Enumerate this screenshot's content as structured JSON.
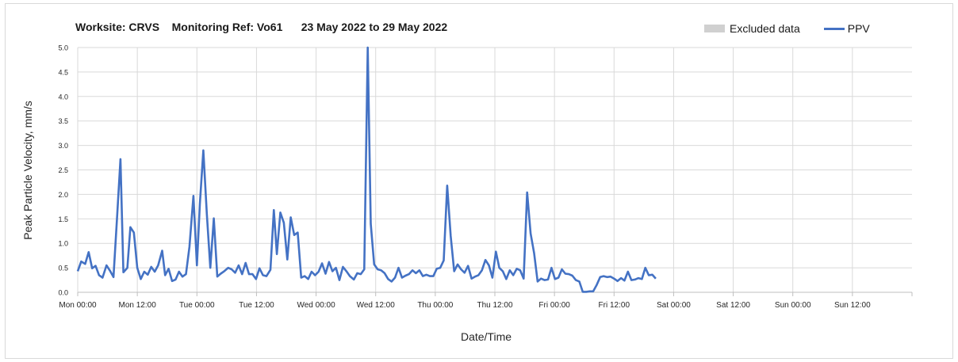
{
  "chart_data": {
    "type": "line",
    "title": "Worksite: CRVS    Monitoring Ref: Vo61      23 May 2022 to 29 May 2022",
    "xlabel": "Date/Time",
    "ylabel": "Peak Particle Velocity, mm/s",
    "ylim": [
      0,
      5
    ],
    "xlim": [
      0,
      168
    ],
    "grid": true,
    "legend_position": "top-right",
    "legend": [
      "Excluded data",
      "PPV"
    ],
    "x_ticks": [
      {
        "x": 0,
        "label": "Mon 00:00"
      },
      {
        "x": 12,
        "label": "Mon 12:00"
      },
      {
        "x": 24,
        "label": "Tue 00:00"
      },
      {
        "x": 36,
        "label": "Tue 12:00"
      },
      {
        "x": 48,
        "label": "Wed 00:00"
      },
      {
        "x": 60,
        "label": "Wed 12:00"
      },
      {
        "x": 72,
        "label": "Thu 00:00"
      },
      {
        "x": 84,
        "label": "Thu 12:00"
      },
      {
        "x": 96,
        "label": "Fri 00:00"
      },
      {
        "x": 108,
        "label": "Fri 12:00"
      },
      {
        "x": 120,
        "label": "Sat 00:00"
      },
      {
        "x": 132,
        "label": "Sat 12:00"
      },
      {
        "x": 144,
        "label": "Sun 00:00"
      },
      {
        "x": 156,
        "label": "Sun 12:00"
      }
    ],
    "y_ticks": [
      "0.0",
      "0.5",
      "1.0",
      "1.5",
      "2.0",
      "2.5",
      "3.0",
      "3.5",
      "4.0",
      "4.5",
      "5.0"
    ],
    "series": [
      {
        "name": "PPV",
        "color": "#4472c4",
        "points": [
          [
            0,
            0.43
          ],
          [
            0.7,
            0.63
          ],
          [
            1.5,
            0.58
          ],
          [
            2.2,
            0.82
          ],
          [
            2.9,
            0.49
          ],
          [
            3.6,
            0.54
          ],
          [
            4.3,
            0.35
          ],
          [
            5.0,
            0.3
          ],
          [
            5.8,
            0.55
          ],
          [
            6.5,
            0.44
          ],
          [
            7.2,
            0.31
          ],
          [
            7.9,
            1.5
          ],
          [
            8.6,
            2.72
          ],
          [
            9.2,
            0.41
          ],
          [
            10.0,
            0.5
          ],
          [
            10.6,
            1.33
          ],
          [
            11.3,
            1.22
          ],
          [
            12.0,
            0.5
          ],
          [
            12.7,
            0.27
          ],
          [
            13.4,
            0.42
          ],
          [
            14.1,
            0.36
          ],
          [
            14.8,
            0.52
          ],
          [
            15.5,
            0.42
          ],
          [
            16.2,
            0.55
          ],
          [
            17.0,
            0.85
          ],
          [
            17.6,
            0.35
          ],
          [
            18.3,
            0.48
          ],
          [
            19.0,
            0.23
          ],
          [
            19.7,
            0.26
          ],
          [
            20.4,
            0.42
          ],
          [
            21.1,
            0.32
          ],
          [
            21.8,
            0.37
          ],
          [
            22.5,
            0.93
          ],
          [
            23.3,
            1.97
          ],
          [
            24.0,
            0.55
          ],
          [
            24.6,
            1.8
          ],
          [
            25.3,
            2.9
          ],
          [
            26.0,
            1.6
          ],
          [
            26.7,
            0.5
          ],
          [
            27.4,
            1.51
          ],
          [
            28.1,
            0.32
          ],
          [
            28.8,
            0.38
          ],
          [
            29.5,
            0.43
          ],
          [
            30.3,
            0.5
          ],
          [
            31.0,
            0.47
          ],
          [
            31.7,
            0.4
          ],
          [
            32.4,
            0.55
          ],
          [
            33.1,
            0.37
          ],
          [
            33.8,
            0.6
          ],
          [
            34.5,
            0.37
          ],
          [
            35.2,
            0.37
          ],
          [
            35.9,
            0.27
          ],
          [
            36.6,
            0.49
          ],
          [
            37.3,
            0.35
          ],
          [
            38.0,
            0.33
          ],
          [
            38.8,
            0.46
          ],
          [
            39.5,
            1.68
          ],
          [
            40.1,
            0.78
          ],
          [
            40.8,
            1.63
          ],
          [
            41.5,
            1.42
          ],
          [
            42.2,
            0.67
          ],
          [
            42.9,
            1.53
          ],
          [
            43.6,
            1.17
          ],
          [
            44.3,
            1.22
          ],
          [
            45.0,
            0.3
          ],
          [
            45.7,
            0.33
          ],
          [
            46.4,
            0.27
          ],
          [
            47.1,
            0.42
          ],
          [
            47.8,
            0.35
          ],
          [
            48.5,
            0.42
          ],
          [
            49.2,
            0.59
          ],
          [
            49.9,
            0.38
          ],
          [
            50.6,
            0.62
          ],
          [
            51.3,
            0.43
          ],
          [
            52.0,
            0.5
          ],
          [
            52.7,
            0.25
          ],
          [
            53.4,
            0.52
          ],
          [
            54.1,
            0.43
          ],
          [
            54.8,
            0.33
          ],
          [
            55.6,
            0.26
          ],
          [
            56.3,
            0.39
          ],
          [
            57.0,
            0.37
          ],
          [
            57.7,
            0.47
          ],
          [
            58.4,
            5.0
          ],
          [
            59.0,
            1.4
          ],
          [
            59.7,
            0.57
          ],
          [
            60.4,
            0.47
          ],
          [
            61.1,
            0.45
          ],
          [
            61.8,
            0.39
          ],
          [
            62.5,
            0.27
          ],
          [
            63.2,
            0.22
          ],
          [
            63.9,
            0.3
          ],
          [
            64.6,
            0.5
          ],
          [
            65.3,
            0.3
          ],
          [
            66.0,
            0.34
          ],
          [
            66.7,
            0.37
          ],
          [
            67.4,
            0.45
          ],
          [
            68.1,
            0.39
          ],
          [
            68.8,
            0.45
          ],
          [
            69.5,
            0.33
          ],
          [
            70.2,
            0.36
          ],
          [
            70.9,
            0.33
          ],
          [
            71.6,
            0.33
          ],
          [
            72.3,
            0.48
          ],
          [
            73.0,
            0.5
          ],
          [
            73.7,
            0.65
          ],
          [
            74.4,
            2.18
          ],
          [
            75.1,
            1.15
          ],
          [
            75.8,
            0.43
          ],
          [
            76.5,
            0.57
          ],
          [
            77.2,
            0.47
          ],
          [
            77.9,
            0.4
          ],
          [
            78.6,
            0.54
          ],
          [
            79.3,
            0.28
          ],
          [
            80.0,
            0.32
          ],
          [
            80.7,
            0.35
          ],
          [
            81.4,
            0.45
          ],
          [
            82.1,
            0.66
          ],
          [
            82.8,
            0.55
          ],
          [
            83.5,
            0.3
          ],
          [
            84.2,
            0.83
          ],
          [
            84.9,
            0.5
          ],
          [
            85.6,
            0.43
          ],
          [
            86.3,
            0.27
          ],
          [
            87.0,
            0.45
          ],
          [
            87.7,
            0.35
          ],
          [
            88.4,
            0.48
          ],
          [
            89.1,
            0.45
          ],
          [
            89.8,
            0.28
          ],
          [
            90.5,
            2.04
          ],
          [
            91.2,
            1.2
          ],
          [
            91.9,
            0.8
          ],
          [
            92.6,
            0.22
          ],
          [
            93.3,
            0.28
          ],
          [
            94.0,
            0.25
          ],
          [
            94.7,
            0.26
          ],
          [
            95.4,
            0.5
          ],
          [
            96.1,
            0.27
          ],
          [
            96.8,
            0.3
          ],
          [
            97.5,
            0.47
          ],
          [
            98.2,
            0.38
          ],
          [
            98.9,
            0.37
          ],
          [
            99.6,
            0.34
          ],
          [
            100.3,
            0.25
          ],
          [
            101.0,
            0.22
          ],
          [
            101.7,
            0.01
          ],
          [
            102.4,
            0.01
          ],
          [
            103.1,
            0.02
          ],
          [
            103.8,
            0.02
          ],
          [
            104.5,
            0.15
          ],
          [
            105.2,
            0.31
          ],
          [
            105.9,
            0.33
          ],
          [
            106.6,
            0.31
          ],
          [
            107.3,
            0.32
          ],
          [
            108.0,
            0.28
          ],
          [
            108.7,
            0.23
          ],
          [
            109.4,
            0.29
          ],
          [
            110.1,
            0.24
          ],
          [
            110.8,
            0.42
          ],
          [
            111.5,
            0.25
          ],
          [
            112.2,
            0.26
          ],
          [
            112.9,
            0.29
          ],
          [
            113.6,
            0.27
          ],
          [
            114.3,
            0.5
          ],
          [
            115.0,
            0.35
          ],
          [
            115.7,
            0.36
          ],
          [
            116.4,
            0.28
          ]
        ]
      }
    ]
  }
}
